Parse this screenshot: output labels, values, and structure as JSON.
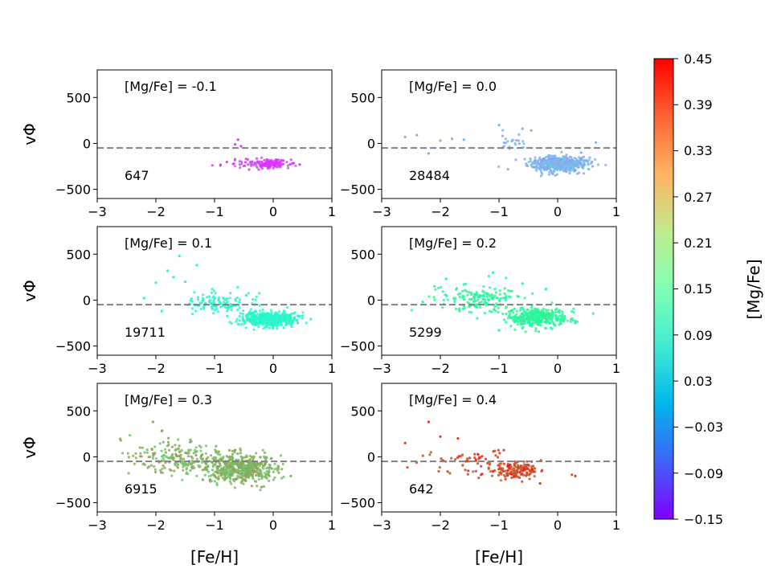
{
  "colormap": {
    "name": "rainbow",
    "range": [
      -0.15,
      0.45
    ],
    "label": "[Mg/Fe]",
    "ticks": [
      "0.45",
      "0.39",
      "0.33",
      "0.27",
      "0.21",
      "0.15",
      "0.09",
      "0.03",
      "−0.03",
      "−0.09",
      "−0.15"
    ],
    "tick_values": [
      0.45,
      0.39,
      0.33,
      0.27,
      0.21,
      0.15,
      0.09,
      0.03,
      -0.03,
      -0.09,
      -0.15
    ]
  },
  "chart_data": [
    {
      "type": "scatter",
      "panel": "top-left",
      "title": "[Mg/Fe] = -0.1",
      "count": "647",
      "mgfe": -0.1,
      "xlim": [
        -3,
        1
      ],
      "ylim": [
        -600,
        800
      ],
      "reference_line_y": -50,
      "xlabel": "",
      "ylabel": "vΦ",
      "xticks": [
        "−3",
        "−2",
        "−1",
        "0",
        "1"
      ],
      "yticks": [
        "500",
        "0",
        "−500"
      ],
      "clusters": [
        {
          "cx": -0.05,
          "cy": -220,
          "sx": 0.15,
          "sy": 22,
          "n": 160
        },
        {
          "cx": -0.45,
          "cy": -225,
          "sx": 0.25,
          "sy": 25,
          "n": 30
        }
      ],
      "points": [
        [
          -0.6,
          40
        ],
        [
          -0.65,
          -10
        ],
        [
          -0.55,
          -30
        ],
        [
          0.45,
          -230
        ],
        [
          -0.9,
          -240
        ]
      ]
    },
    {
      "type": "scatter",
      "panel": "top-right",
      "title": "[Mg/Fe] = 0.0",
      "count": "28484",
      "mgfe": 0.0,
      "xlim": [
        -3,
        1
      ],
      "ylim": [
        -600,
        800
      ],
      "reference_line_y": -50,
      "xticks": [
        "−3",
        "−2",
        "−1",
        "0",
        "1"
      ],
      "yticks": [
        "500",
        "0",
        "−500"
      ],
      "clusters": [
        {
          "cx": 0.0,
          "cy": -220,
          "sx": 0.25,
          "sy": 40,
          "n": 550
        },
        {
          "cx": -0.75,
          "cy": 20,
          "sx": 0.12,
          "sy": 35,
          "n": 22
        }
      ],
      "points": [
        [
          -2.6,
          70
        ],
        [
          -2.4,
          90
        ],
        [
          -2.2,
          -110
        ],
        [
          -2.0,
          30
        ],
        [
          -1.8,
          50
        ],
        [
          -1.6,
          40
        ],
        [
          -1.0,
          200
        ],
        [
          -0.6,
          160
        ],
        [
          -0.45,
          140
        ],
        [
          0.65,
          10
        ],
        [
          0.4,
          -100
        ]
      ]
    },
    {
      "type": "scatter",
      "panel": "middle-left",
      "title": "[Mg/Fe] = 0.1",
      "count": "19711",
      "mgfe": 0.1,
      "xlim": [
        -3,
        1
      ],
      "ylim": [
        -600,
        800
      ],
      "reference_line_y": -50,
      "ylabel": "vΦ",
      "xticks": [
        "−3",
        "−2",
        "−1",
        "0",
        "1"
      ],
      "yticks": [
        "500",
        "0",
        "−500"
      ],
      "clusters": [
        {
          "cx": -0.05,
          "cy": -210,
          "sx": 0.22,
          "sy": 38,
          "n": 500
        },
        {
          "cx": -0.9,
          "cy": -30,
          "sx": 0.3,
          "sy": 60,
          "n": 120
        }
      ],
      "points": [
        [
          -1.6,
          480
        ],
        [
          -1.8,
          320
        ],
        [
          -1.3,
          380
        ],
        [
          -2.0,
          190
        ],
        [
          -2.2,
          20
        ],
        [
          -1.9,
          -120
        ],
        [
          -1.7,
          250
        ],
        [
          -1.5,
          200
        ],
        [
          0.5,
          -170
        ]
      ]
    },
    {
      "type": "scatter",
      "panel": "middle-right",
      "title": "[Mg/Fe] = 0.2",
      "count": "5299",
      "mgfe": 0.2,
      "xlim": [
        -3,
        1
      ],
      "ylim": [
        -600,
        800
      ],
      "reference_line_y": -50,
      "xticks": [
        "−3",
        "−2",
        "−1",
        "0",
        "1"
      ],
      "yticks": [
        "500",
        "0",
        "−500"
      ],
      "clusters": [
        {
          "cx": -0.35,
          "cy": -190,
          "sx": 0.25,
          "sy": 55,
          "n": 350
        },
        {
          "cx": -1.3,
          "cy": 10,
          "sx": 0.35,
          "sy": 70,
          "n": 160
        }
      ],
      "points": [
        [
          -2.3,
          -20
        ],
        [
          -2.1,
          150
        ],
        [
          -1.9,
          230
        ],
        [
          -1.1,
          300
        ],
        [
          -0.6,
          180
        ],
        [
          -0.2,
          120
        ],
        [
          -1.0,
          -330
        ],
        [
          0.3,
          -250
        ]
      ]
    },
    {
      "type": "scatter",
      "panel": "bottom-left",
      "title": "[Mg/Fe] = 0.3",
      "count": "6915",
      "mgfe": 0.3,
      "xlim": [
        -3,
        1
      ],
      "ylim": [
        -600,
        800
      ],
      "reference_line_y": -50,
      "xlabel": "[Fe/H]",
      "ylabel": "vΦ",
      "xticks": [
        "−3",
        "−2",
        "−1",
        "0",
        "1"
      ],
      "yticks": [
        "500",
        "0",
        "−500"
      ],
      "clusters": [
        {
          "cx": -0.55,
          "cy": -130,
          "sx": 0.3,
          "sy": 75,
          "n": 500
        },
        {
          "cx": -1.5,
          "cy": -20,
          "sx": 0.4,
          "sy": 80,
          "n": 200
        },
        {
          "cx": -2.1,
          "cy": 50,
          "sx": 0.2,
          "sy": 100,
          "n": 20
        }
      ],
      "points": [
        [
          -2.05,
          380
        ],
        [
          -1.9,
          280
        ],
        [
          -2.6,
          180
        ],
        [
          0.3,
          -210
        ],
        [
          -0.2,
          -330
        ],
        [
          -1.2,
          -250
        ]
      ]
    },
    {
      "type": "scatter",
      "panel": "bottom-right",
      "title": "[Mg/Fe] = 0.4",
      "count": "642",
      "mgfe": 0.4,
      "xlim": [
        -3,
        1
      ],
      "ylim": [
        -600,
        800
      ],
      "reference_line_y": -50,
      "xlabel": "[Fe/H]",
      "xticks": [
        "−3",
        "−2",
        "−1",
        "0",
        "1"
      ],
      "yticks": [
        "500",
        "0",
        "−500"
      ],
      "clusters": [
        {
          "cx": -0.7,
          "cy": -150,
          "sx": 0.22,
          "sy": 50,
          "n": 150
        },
        {
          "cx": -1.6,
          "cy": -60,
          "sx": 0.45,
          "sy": 70,
          "n": 60
        }
      ],
      "points": [
        [
          -2.2,
          380
        ],
        [
          -2.0,
          220
        ],
        [
          -1.7,
          200
        ],
        [
          -2.6,
          150
        ],
        [
          0.3,
          -210
        ],
        [
          -0.3,
          -290
        ]
      ]
    }
  ]
}
